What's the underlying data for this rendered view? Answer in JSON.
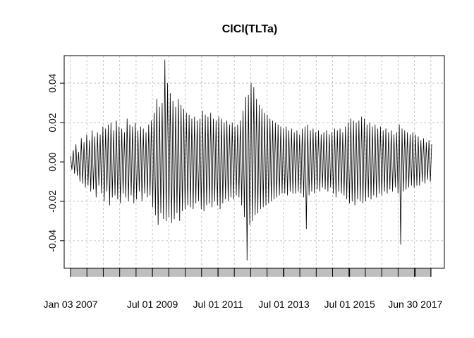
{
  "chart_data": {
    "type": "line",
    "title": "ClCl(TLTa)",
    "xlabel": "",
    "ylabel": "",
    "x_start": "2007-01-03",
    "x_end": "2017-12-29",
    "xlim": [
      "2007-01-03",
      "2017-12-29"
    ],
    "ylim": [
      -0.054,
      0.054
    ],
    "y_ticks": [
      -0.04,
      -0.02,
      0.0,
      0.02,
      0.04
    ],
    "y_tick_labels": [
      "-0.04",
      "-0.02",
      "0.00",
      "0.02",
      "0.04"
    ],
    "x_ticks": [
      {
        "date": "2007-01-03",
        "label": "Jan 03 2007"
      },
      {
        "date": "2009-07-01",
        "label": "Jul 01 2009"
      },
      {
        "date": "2011-07-01",
        "label": "Jul 01 2011"
      },
      {
        "date": "2013-07-01",
        "label": "Jul 01 2013"
      },
      {
        "date": "2015-07-01",
        "label": "Jul 01 2015"
      },
      {
        "date": "2017-06-30",
        "label": "Jun 30 2017"
      }
    ],
    "grid": true,
    "legend": "none",
    "series_color": "#000000",
    "grid_color": "#c8c8c8",
    "band_color": "#bebebe",
    "series": [
      {
        "values": [
          0.003,
          -0.004,
          0.006,
          -0.006,
          0.009,
          -0.007,
          0.005,
          -0.01,
          0.012,
          -0.011,
          0.01,
          -0.013,
          0.014,
          -0.012,
          0.011,
          -0.015,
          0.016,
          -0.014,
          0.013,
          -0.018,
          0.015,
          -0.012,
          0.014,
          -0.016,
          0.018,
          -0.02,
          0.017,
          -0.015,
          0.019,
          -0.022,
          0.02,
          -0.018,
          0.016,
          -0.017,
          0.021,
          -0.019,
          0.018,
          -0.021,
          0.017,
          -0.016,
          0.015,
          -0.018,
          0.022,
          -0.02,
          0.019,
          -0.017,
          0.018,
          -0.021,
          0.02,
          -0.019,
          0.016,
          -0.015,
          0.018,
          -0.02,
          0.017,
          -0.016,
          0.015,
          -0.018,
          0.019,
          -0.017,
          0.021,
          -0.023,
          0.025,
          -0.027,
          0.032,
          -0.032,
          0.028,
          -0.026,
          0.03,
          -0.029,
          0.052,
          -0.03,
          0.04,
          -0.028,
          0.035,
          -0.031,
          0.031,
          -0.029,
          0.028,
          -0.026,
          0.032,
          -0.03,
          0.029,
          -0.025,
          0.027,
          -0.024,
          0.025,
          -0.022,
          0.024,
          -0.023,
          0.022,
          -0.024,
          0.023,
          -0.021,
          0.021,
          -0.02,
          0.022,
          -0.024,
          0.026,
          -0.025,
          0.024,
          -0.022,
          0.023,
          -0.021,
          0.025,
          -0.023,
          0.022,
          -0.02,
          0.021,
          -0.022,
          0.023,
          -0.024,
          0.022,
          -0.021,
          0.02,
          -0.019,
          0.021,
          -0.02,
          0.019,
          -0.018,
          0.02,
          -0.019,
          0.018,
          -0.017,
          0.019,
          -0.018,
          0.021,
          -0.022,
          0.026,
          -0.028,
          0.033,
          -0.05,
          0.034,
          -0.032,
          0.04,
          -0.03,
          0.038,
          -0.027,
          0.032,
          -0.026,
          0.029,
          -0.024,
          0.027,
          -0.023,
          0.025,
          -0.022,
          0.024,
          -0.021,
          0.022,
          -0.02,
          0.021,
          -0.019,
          0.02,
          -0.018,
          0.019,
          -0.017,
          0.018,
          -0.016,
          0.017,
          -0.016,
          0.018,
          -0.017,
          0.016,
          -0.015,
          0.017,
          -0.016,
          0.015,
          -0.016,
          0.016,
          -0.015,
          0.014,
          -0.016,
          0.017,
          -0.018,
          0.018,
          -0.034,
          0.019,
          -0.017,
          0.016,
          -0.015,
          0.017,
          -0.016,
          0.015,
          -0.014,
          0.016,
          -0.015,
          0.014,
          -0.013,
          0.015,
          -0.014,
          0.016,
          -0.015,
          0.014,
          -0.013,
          0.015,
          -0.016,
          0.017,
          -0.018,
          0.016,
          -0.015,
          0.017,
          -0.016,
          0.015,
          -0.017,
          0.018,
          -0.019,
          0.02,
          -0.021,
          0.022,
          -0.02,
          0.021,
          -0.022,
          0.02,
          -0.019,
          0.021,
          -0.02,
          0.023,
          -0.021,
          0.022,
          -0.02,
          0.019,
          -0.018,
          0.02,
          -0.019,
          0.018,
          -0.017,
          0.019,
          -0.018,
          0.017,
          -0.016,
          0.018,
          -0.017,
          0.016,
          -0.015,
          0.017,
          -0.016,
          0.015,
          -0.014,
          0.016,
          -0.015,
          0.014,
          -0.013,
          0.015,
          -0.016,
          0.019,
          -0.042,
          0.017,
          -0.015,
          0.016,
          -0.014,
          0.015,
          -0.013,
          0.014,
          -0.012,
          0.015,
          -0.013,
          0.014,
          -0.012,
          0.013,
          -0.012,
          0.011,
          -0.01,
          0.012,
          -0.011,
          0.01,
          -0.009,
          0.011,
          -0.01,
          0.009
        ]
      }
    ]
  }
}
